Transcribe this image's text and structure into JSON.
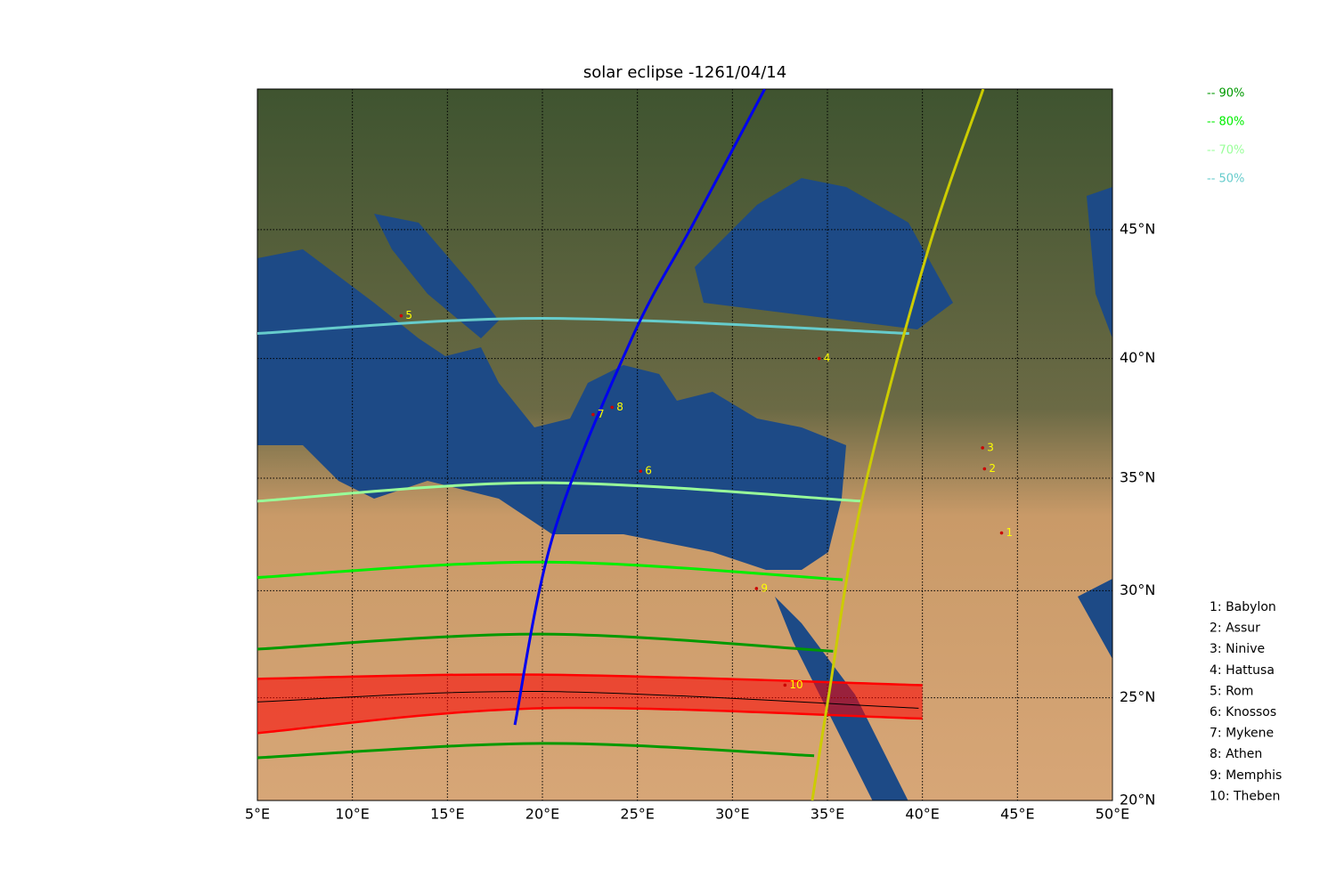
{
  "chart_data": {
    "type": "map",
    "projection": "mercator",
    "title": "solar eclipse -1261/04/14",
    "xlim": [
      5,
      50
    ],
    "ylim": [
      20,
      50
    ],
    "xticks": [
      {
        "value": 5,
        "label": "5°E"
      },
      {
        "value": 10,
        "label": "10°E"
      },
      {
        "value": 15,
        "label": "15°E"
      },
      {
        "value": 20,
        "label": "20°E"
      },
      {
        "value": 25,
        "label": "25°E"
      },
      {
        "value": 30,
        "label": "30°E"
      },
      {
        "value": 35,
        "label": "35°E"
      },
      {
        "value": 40,
        "label": "40°E"
      },
      {
        "value": 45,
        "label": "45°E"
      },
      {
        "value": 50,
        "label": "50°E"
      }
    ],
    "yticks": [
      {
        "value": 20,
        "label": "20°N"
      },
      {
        "value": 25,
        "label": "25°N"
      },
      {
        "value": 30,
        "label": "30°N"
      },
      {
        "value": 35,
        "label": "35°N"
      },
      {
        "value": 40,
        "label": "40°N"
      },
      {
        "value": 45,
        "label": "45°N"
      }
    ],
    "grid": true,
    "series": [
      {
        "name": "-- 90%",
        "color": "#009900",
        "curves": [
          {
            "lon": [
              5,
              20,
              35.3
            ],
            "lat": [
              27.3,
              28.0,
              27.2
            ]
          },
          {
            "lon": [
              5,
              20,
              34.3
            ],
            "lat": [
              22.1,
              22.8,
              22.2
            ]
          }
        ]
      },
      {
        "name": "-- 80%",
        "color": "#00ee00",
        "curves": [
          {
            "lon": [
              5,
              20,
              35.8
            ],
            "lat": [
              30.6,
              31.3,
              30.5
            ]
          }
        ]
      },
      {
        "name": "-- 70%",
        "color": "#99ff99",
        "curves": [
          {
            "lon": [
              5,
              20,
              36.8
            ],
            "lat": [
              34.0,
              34.8,
              34.0
            ]
          }
        ]
      },
      {
        "name": "-- 50%",
        "color": "#66cccc",
        "curves": [
          {
            "lon": [
              5,
              20,
              39.3
            ],
            "lat": [
              41.0,
              41.6,
              41.0
            ]
          }
        ]
      }
    ],
    "totality": {
      "color": "#ff0000",
      "north": {
        "lon": [
          5,
          20,
          40
        ],
        "lat": [
          25.9,
          26.1,
          25.6
        ]
      },
      "south": {
        "lon": [
          5,
          20,
          40
        ],
        "lat": [
          23.3,
          24.5,
          24.0
        ]
      },
      "center": {
        "lon": [
          5,
          20,
          39.8
        ],
        "lat": [
          24.8,
          25.3,
          24.5
        ],
        "color": "#000000"
      }
    },
    "tracks": [
      {
        "color": "#0000ee",
        "lon": [
          18.55,
          20.6,
          24.7,
          28.0,
          31.7
        ],
        "lat": [
          23.7,
          32.6,
          40.8,
          45.3,
          50.0
        ]
      },
      {
        "color": "#cccc00",
        "lon": [
          34.2,
          35.05,
          36.8,
          40.2,
          43.2
        ],
        "lat": [
          20.0,
          25.0,
          34.0,
          44.0,
          50.0
        ]
      }
    ],
    "cities": [
      {
        "marker": "1",
        "label": "1: Babylon",
        "lon": 44.4,
        "lat": 32.6
      },
      {
        "marker": "2",
        "label": "2: Assur",
        "lon": 43.5,
        "lat": 35.4
      },
      {
        "marker": "3",
        "label": "3: Ninive",
        "lon": 43.4,
        "lat": 36.3
      },
      {
        "marker": "4",
        "label": "4: Hattusa",
        "lon": 34.8,
        "lat": 40.0
      },
      {
        "marker": "5",
        "label": "5: Rom",
        "lon": 12.8,
        "lat": 41.7
      },
      {
        "marker": "6",
        "label": "6: Knossos",
        "lon": 25.4,
        "lat": 35.3
      },
      {
        "marker": "7",
        "label": "7: Mykene",
        "lon": 22.9,
        "lat": 37.7
      },
      {
        "marker": "8",
        "label": "8: Athen",
        "lon": 23.9,
        "lat": 38.0
      },
      {
        "marker": "9",
        "label": "9: Memphis",
        "lon": 31.5,
        "lat": 30.1
      },
      {
        "marker": "10",
        "label": "10: Theben",
        "lon": 33.0,
        "lat": 25.6
      }
    ]
  }
}
